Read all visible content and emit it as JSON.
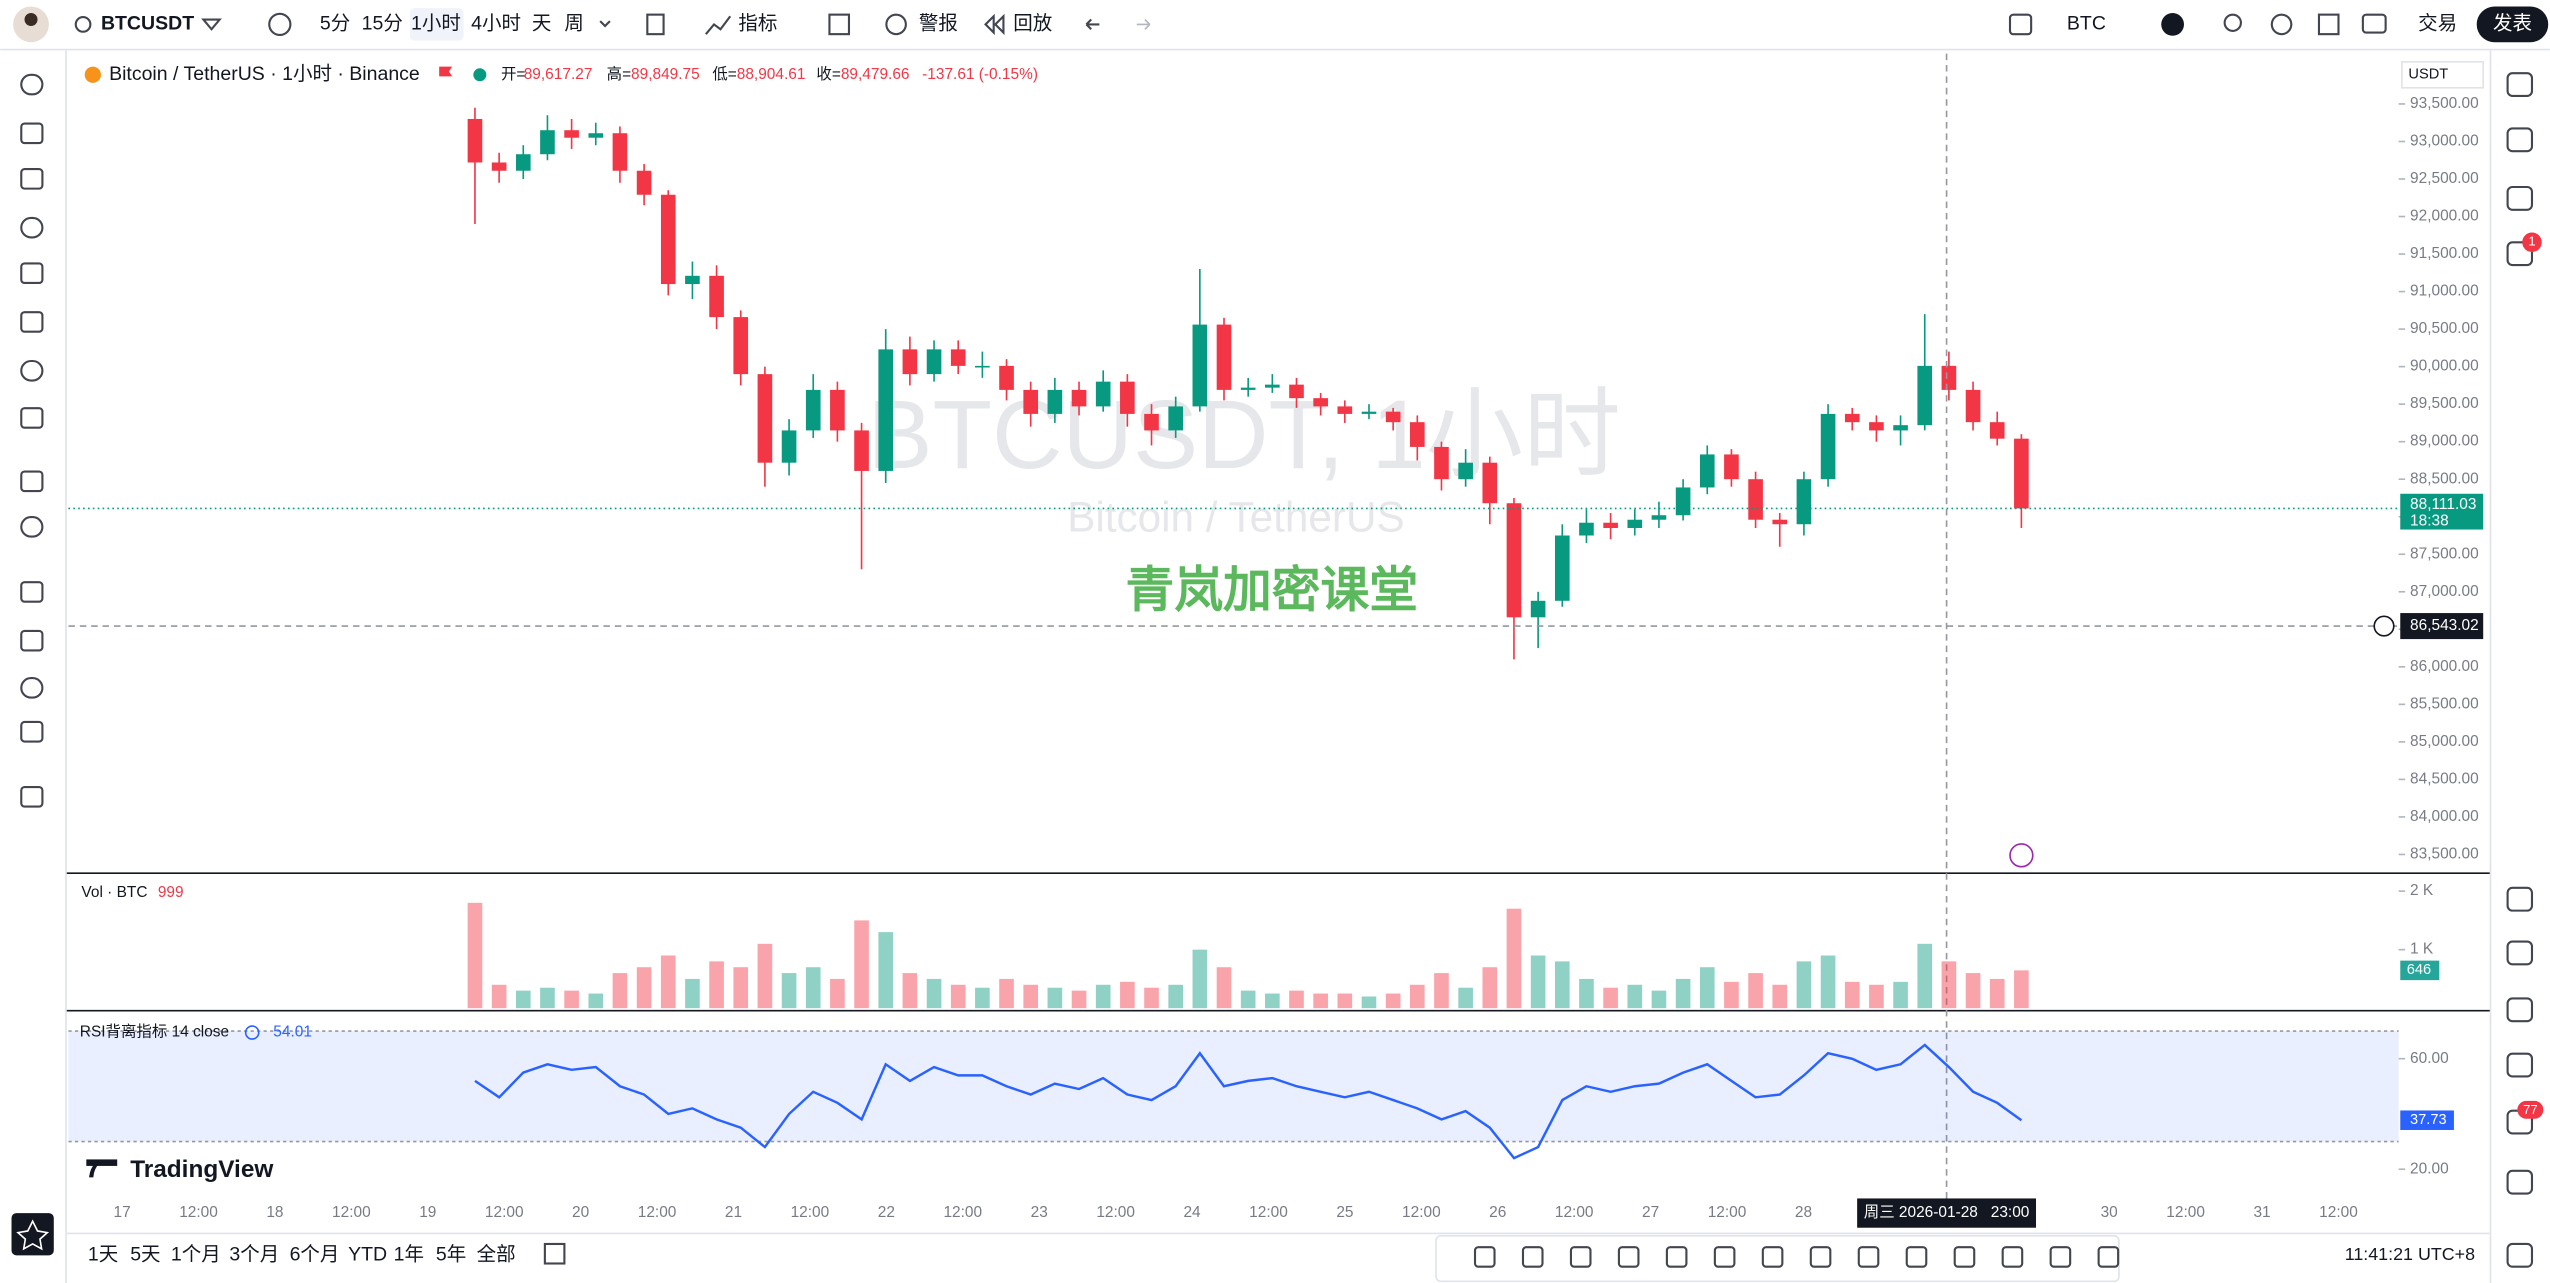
{
  "toolbar": {
    "symbol": "BTCUSDT",
    "intervals": [
      "5分",
      "15分",
      "1小时",
      "4小时",
      "天",
      "周"
    ],
    "indicators": "指标",
    "alert": "警报",
    "replay": "回放",
    "currency": "BTC",
    "trade": "交易",
    "publish": "发表"
  },
  "chart_data": {
    "type": "candlestick",
    "title": "Bitcoin / TetherUS · 1小时 · Binance",
    "legend": [
      {
        "label": "开=",
        "value": "89,617.27"
      },
      {
        "label": "高=",
        "value": "89,849.75"
      },
      {
        "label": "低=",
        "value": "88,904.61"
      },
      {
        "label": "收=",
        "value": "89,479.66"
      }
    ],
    "change": "-137.61 (-0.15%)",
    "watermark": "BTCUSDT, 1小时",
    "watermark_sub": "Bitcoin / TetherUS",
    "overlay_text": "青岚加密课堂",
    "currency": "USDT",
    "up_color": "#089981",
    "down_color": "#f23645",
    "ohlc": [
      [
        93300,
        93450,
        91900,
        92720
      ],
      [
        92720,
        92850,
        92450,
        92610
      ],
      [
        92610,
        92950,
        92500,
        92830
      ],
      [
        92830,
        93350,
        92750,
        93150
      ],
      [
        93150,
        93300,
        92900,
        93050
      ],
      [
        93050,
        93250,
        92950,
        93110
      ],
      [
        93110,
        93200,
        92450,
        92610
      ],
      [
        92610,
        92700,
        92150,
        92290
      ],
      [
        92290,
        92350,
        90950,
        91100
      ],
      [
        91100,
        91400,
        90900,
        91210
      ],
      [
        91210,
        91350,
        90500,
        90660
      ],
      [
        90660,
        90750,
        89750,
        89900
      ],
      [
        89900,
        90000,
        88400,
        88720
      ],
      [
        88720,
        89300,
        88550,
        89150
      ],
      [
        89150,
        89900,
        89050,
        89690
      ],
      [
        89690,
        89800,
        89000,
        89150
      ],
      [
        89150,
        89250,
        87300,
        88610
      ],
      [
        88610,
        90500,
        88450,
        90230
      ],
      [
        90230,
        90400,
        89750,
        89900
      ],
      [
        89900,
        90350,
        89800,
        90230
      ],
      [
        90230,
        90350,
        89900,
        90010
      ],
      [
        90010,
        90200,
        89850,
        90010
      ],
      [
        90010,
        90100,
        89550,
        89690
      ],
      [
        89690,
        89800,
        89200,
        89370
      ],
      [
        89370,
        89850,
        89250,
        89690
      ],
      [
        89690,
        89800,
        89350,
        89470
      ],
      [
        89470,
        89950,
        89400,
        89800
      ],
      [
        89800,
        89900,
        89200,
        89370
      ],
      [
        89370,
        89500,
        88950,
        89150
      ],
      [
        89150,
        89600,
        89050,
        89470
      ],
      [
        89470,
        91300,
        89400,
        90560
      ],
      [
        90560,
        90650,
        89550,
        89690
      ],
      [
        89690,
        89850,
        89600,
        89720
      ],
      [
        89720,
        89900,
        89650,
        89760
      ],
      [
        89760,
        89850,
        89450,
        89580
      ],
      [
        89580,
        89650,
        89350,
        89470
      ],
      [
        89470,
        89550,
        89250,
        89370
      ],
      [
        89370,
        89500,
        89300,
        89400
      ],
      [
        89400,
        89450,
        89150,
        89260
      ],
      [
        89260,
        89350,
        88750,
        88930
      ],
      [
        88930,
        89000,
        88350,
        88500
      ],
      [
        88500,
        88900,
        88400,
        88720
      ],
      [
        88720,
        88800,
        87900,
        88180
      ],
      [
        88180,
        88250,
        86100,
        86660
      ],
      [
        86660,
        87000,
        86250,
        86880
      ],
      [
        86880,
        87900,
        86800,
        87750
      ],
      [
        87750,
        88100,
        87650,
        87920
      ],
      [
        87920,
        88050,
        87700,
        87850
      ],
      [
        87850,
        88100,
        87750,
        87960
      ],
      [
        87960,
        88200,
        87850,
        88020
      ],
      [
        88020,
        88500,
        87950,
        88390
      ],
      [
        88390,
        88950,
        88300,
        88830
      ],
      [
        88830,
        88900,
        88400,
        88500
      ],
      [
        88500,
        88600,
        87850,
        87960
      ],
      [
        87960,
        88050,
        87600,
        87900
      ],
      [
        87900,
        88600,
        87750,
        88500
      ],
      [
        88500,
        89500,
        88400,
        89370
      ],
      [
        89370,
        89450,
        89150,
        89260
      ],
      [
        89260,
        89350,
        89000,
        89150
      ],
      [
        89150,
        89350,
        88950,
        89220
      ],
      [
        89220,
        90700,
        89150,
        90010
      ],
      [
        90010,
        90200,
        89550,
        89690
      ],
      [
        89690,
        89800,
        89150,
        89260
      ],
      [
        89260,
        89400,
        88950,
        89040
      ],
      [
        89040,
        89100,
        87850,
        88111
      ]
    ],
    "ylim": [
      83250,
      94170
    ],
    "yticks": [
      {
        "value": 93500,
        "label": "93,500.00"
      },
      {
        "value": 93000,
        "label": "93,000.00"
      },
      {
        "value": 92500,
        "label": "92,500.00"
      },
      {
        "value": 92000,
        "label": "92,000.00"
      },
      {
        "value": 91500,
        "label": "91,500.00"
      },
      {
        "value": 91000,
        "label": "91,000.00"
      },
      {
        "value": 90500,
        "label": "90,500.00"
      },
      {
        "value": 90000,
        "label": "90,000.00"
      },
      {
        "value": 89500,
        "label": "89,500.00"
      },
      {
        "value": 89000,
        "label": "89,000.00"
      },
      {
        "value": 88500,
        "label": "88,500.00"
      },
      {
        "value": 88000,
        "label": "88,000.00"
      },
      {
        "value": 87500,
        "label": "87,500.00"
      },
      {
        "value": 87000,
        "label": "87,000.00"
      },
      {
        "value": 86500,
        "label": "86,500.00"
      },
      {
        "value": 86000,
        "label": "86,000.00"
      },
      {
        "value": 85500,
        "label": "85,500.00"
      },
      {
        "value": 85000,
        "label": "85,000.00"
      },
      {
        "value": 84500,
        "label": "84,500.00"
      },
      {
        "value": 84000,
        "label": "84,000.00"
      },
      {
        "value": 83500,
        "label": "83,500.00"
      }
    ],
    "last_price": {
      "value": 88111.03,
      "label": "88,111.03"
    },
    "countdown": "18:38",
    "crosshair_price": {
      "value": 86543.02,
      "label": "86,543.02"
    },
    "crosshair_time": "周三 2026-01-28   23:00",
    "time_labels": [
      "17",
      "12:00",
      "18",
      "12:00",
      "19",
      "12:00",
      "20",
      "12:00",
      "21",
      "12:00",
      "22",
      "12:00",
      "23",
      "12:00",
      "24",
      "12:00",
      "25",
      "12:00",
      "26",
      "12:00",
      "27",
      "12:00",
      "28",
      null,
      null,
      null,
      "30",
      "12:00",
      "31",
      "12:00"
    ]
  },
  "volume": {
    "label": "Vol · BTC",
    "header_value": "999",
    "values": [
      1800,
      400,
      300,
      350,
      300,
      250,
      600,
      700,
      900,
      500,
      800,
      700,
      1100,
      600,
      700,
      500,
      1500,
      1300,
      600,
      500,
      400,
      350,
      500,
      400,
      350,
      300,
      400,
      450,
      350,
      400,
      1000,
      700,
      300,
      250,
      300,
      250,
      250,
      200,
      250,
      400,
      600,
      350,
      700,
      1700,
      900,
      800,
      500,
      350,
      400,
      300,
      500,
      700,
      450,
      600,
      400,
      800,
      900,
      450,
      400,
      450,
      1100,
      800,
      600,
      500,
      646
    ],
    "ylim": [
      0,
      2306
    ],
    "yticks": [
      {
        "value": 1000,
        "label": "1 K"
      },
      {
        "value": 2000,
        "label": "2 K"
      }
    ]
  },
  "rsi": {
    "label": "RSI背离指标 14 close",
    "header_value": "54.01",
    "values": [
      52,
      46,
      55,
      58,
      56,
      57,
      50,
      47,
      40,
      42,
      38,
      35,
      28,
      40,
      48,
      44,
      38,
      58,
      52,
      57,
      54,
      54,
      50,
      47,
      51,
      49,
      53,
      47,
      45,
      50,
      62,
      50,
      52,
      53,
      50,
      48,
      46,
      48,
      45,
      42,
      38,
      41,
      35,
      24,
      28,
      45,
      50,
      48,
      50,
      51,
      55,
      58,
      52,
      46,
      47,
      54,
      62,
      60,
      56,
      58,
      65,
      57,
      48,
      44,
      37.73
    ],
    "ylim": [
      10.6,
      77.1
    ],
    "band": [
      30,
      70
    ],
    "yticks": [
      {
        "value": 60,
        "label": "60.00"
      },
      {
        "value": 20,
        "label": "20.00"
      }
    ],
    "color": "#2962ff"
  },
  "brand": "TradingView",
  "bottom": {
    "ranges": [
      "1天",
      "5天",
      "1个月",
      "3个月",
      "6个月",
      "YTD",
      "1年",
      "5年",
      "全部"
    ],
    "clock": "11:41:21 UTC+8"
  },
  "badges": {
    "chat": 1,
    "alerts": 77
  }
}
